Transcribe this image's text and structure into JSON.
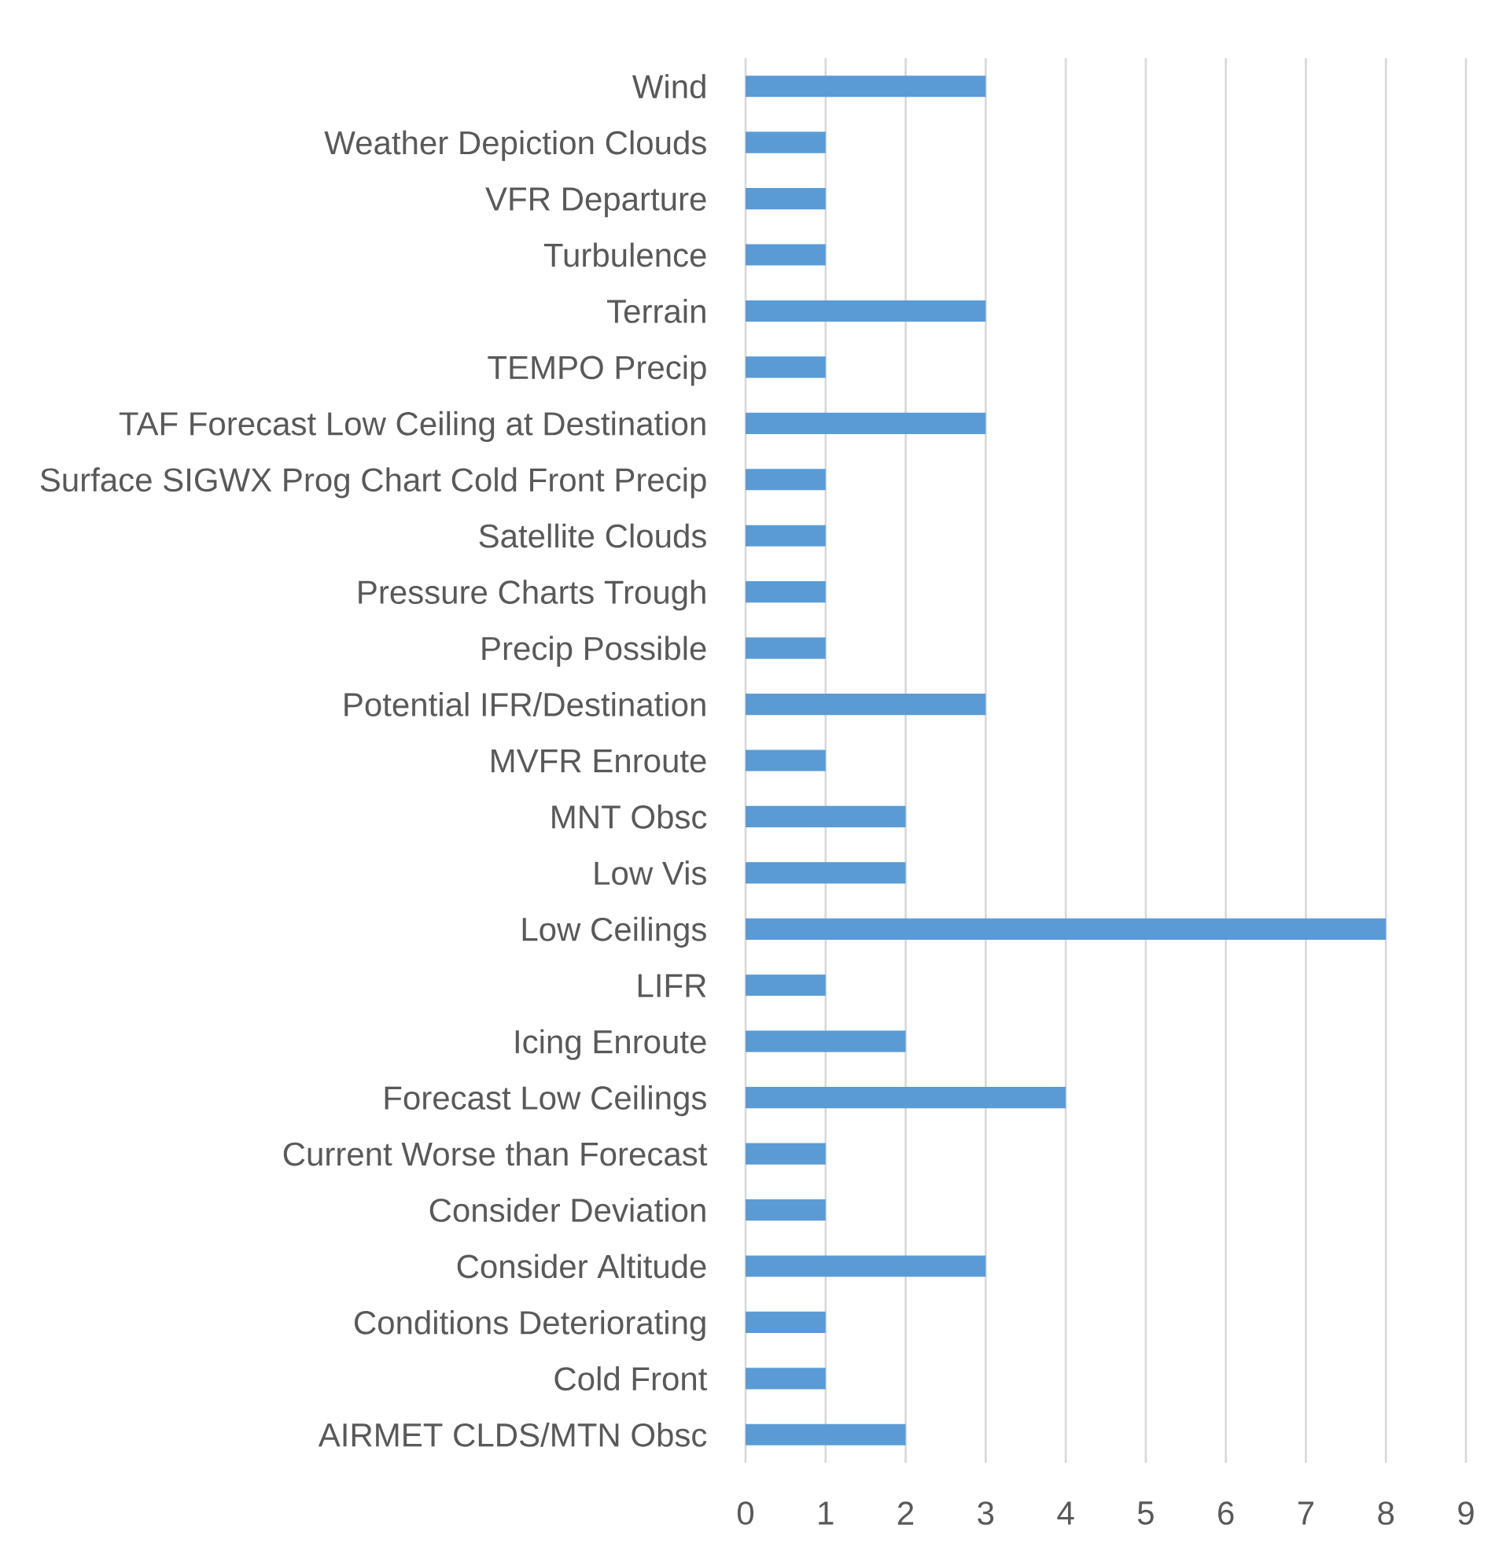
{
  "chart_data": {
    "type": "bar",
    "orientation": "horizontal",
    "categories": [
      "Wind",
      "Weather Depiction Clouds",
      "VFR Departure",
      "Turbulence",
      "Terrain",
      "TEMPO Precip",
      "TAF Forecast Low Ceiling at Destination",
      "Surface SIGWX Prog Chart Cold Front Precip",
      "Satellite Clouds",
      "Pressure Charts Trough",
      "Precip Possible",
      "Potential IFR/Destination",
      "MVFR Enroute",
      "MNT Obsc",
      "Low Vis",
      "Low Ceilings",
      "LIFR",
      "Icing Enroute",
      "Forecast Low Ceilings",
      "Current Worse than Forecast",
      "Consider Deviation",
      "Consider Altitude",
      "Conditions Deteriorating",
      "Cold Front",
      "AIRMET CLDS/MTN Obsc"
    ],
    "values": [
      3,
      1,
      1,
      1,
      3,
      1,
      3,
      1,
      1,
      1,
      1,
      3,
      1,
      2,
      2,
      8,
      1,
      2,
      4,
      1,
      1,
      3,
      1,
      1,
      2
    ],
    "color": "#5b9bd5",
    "xlim": [
      0,
      9
    ],
    "xticks": [
      0,
      1,
      2,
      3,
      4,
      5,
      6,
      7,
      8,
      9
    ],
    "grid": "x"
  }
}
